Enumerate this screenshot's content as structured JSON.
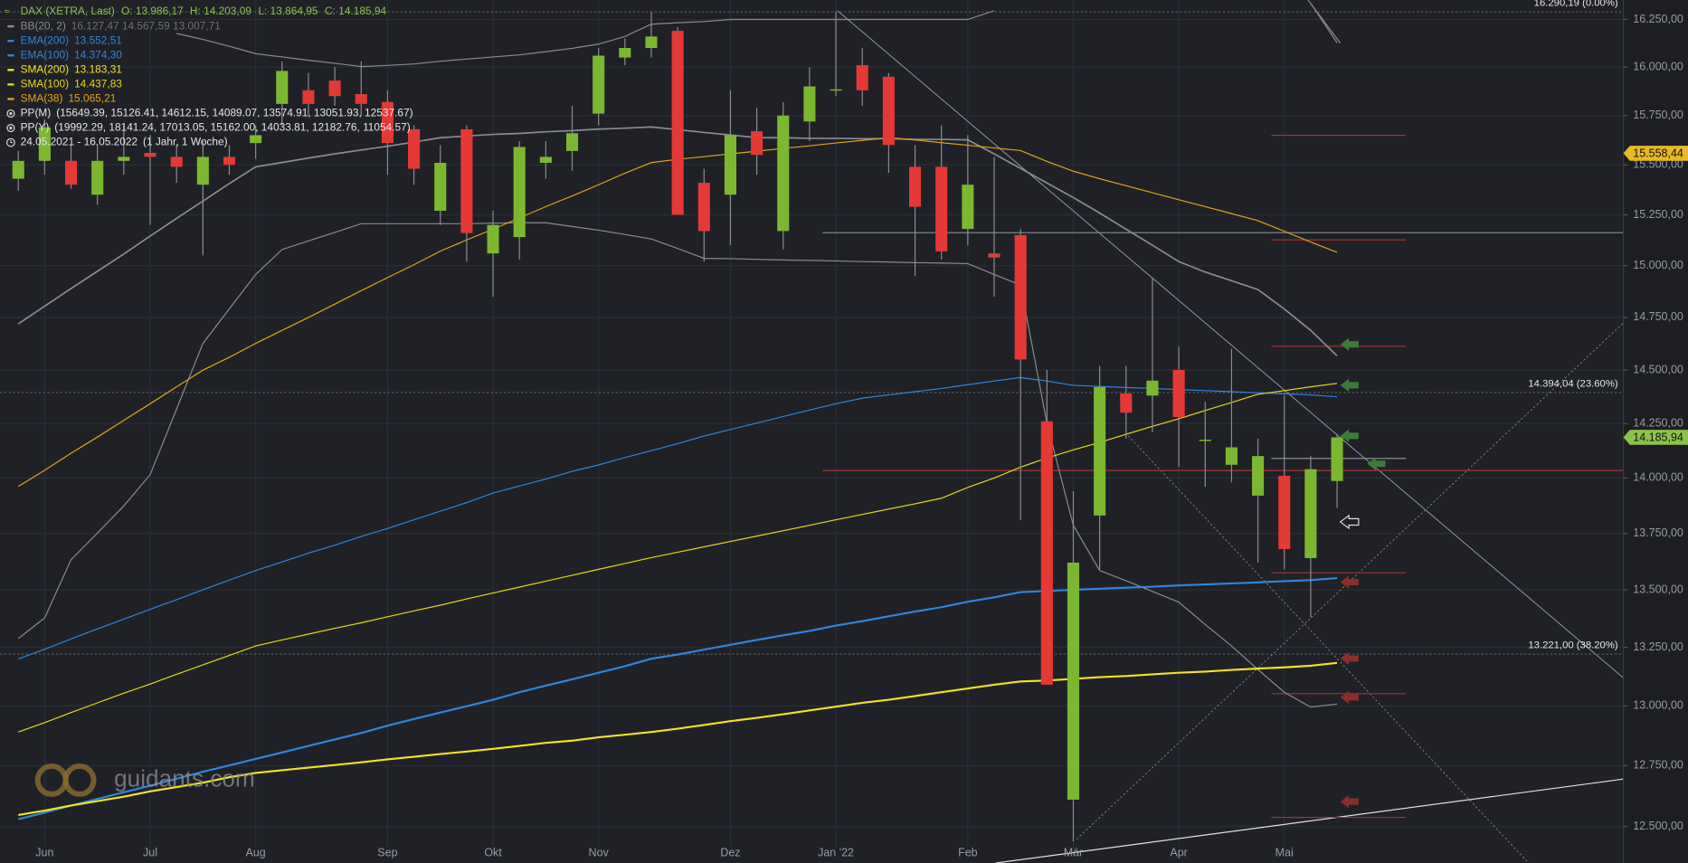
{
  "chart_data": {
    "type": "candlestick",
    "title": "DAX (XETRA, Last)",
    "header_values": [
      "O: 13.986,17",
      "H: 14.203,09",
      "L: 13.864,95",
      "C: 14.185,94"
    ],
    "date_range": "24.05.2021 - 16.05.2022",
    "period": "(1 Jahr, 1 Woche)",
    "watermark": "guidants.com",
    "log_scale": true,
    "grid": true,
    "up_color": "#7cb82f",
    "down_color": "#e53935",
    "categories": [
      null,
      "Jun",
      null,
      null,
      null,
      "Jul",
      null,
      null,
      null,
      "Aug",
      null,
      null,
      null,
      null,
      "Sep",
      null,
      null,
      null,
      "Okt",
      null,
      null,
      null,
      "Nov",
      null,
      null,
      null,
      null,
      "Dez",
      null,
      null,
      null,
      "Jan '22",
      null,
      null,
      null,
      null,
      "Feb",
      null,
      null,
      null,
      "Mär",
      null,
      null,
      null,
      "Apr",
      null,
      null,
      null,
      "Mai",
      null,
      null
    ],
    "open": [
      15430,
      15520,
      15520,
      15350,
      15520,
      15560,
      15540,
      15400,
      15540,
      15610,
      15810,
      15880,
      15930,
      15860,
      15820,
      15680,
      15270,
      15680,
      15060,
      15140,
      15510,
      15570,
      15760,
      16050,
      16100,
      16190,
      15410,
      15350,
      15670,
      15170,
      15720,
      15880,
      16010,
      15950,
      15490,
      15490,
      15180,
      15060,
      15150,
      14260,
      12610,
      13830,
      14390,
      14380,
      14500,
      14170,
      14060,
      13920,
      14010,
      13640,
      13986.17
    ],
    "high": [
      15570,
      15730,
      15600,
      15600,
      15700,
      15650,
      15600,
      15620,
      15600,
      15700,
      16030,
      15970,
      16000,
      16030,
      15880,
      15700,
      15600,
      15700,
      15270,
      15620,
      15620,
      15800,
      16100,
      16150,
      16290,
      16210,
      15480,
      15880,
      15790,
      15820,
      16000,
      16290,
      16100,
      15970,
      15600,
      15700,
      15650,
      15540,
      15180,
      14500,
      13940,
      14520,
      14520,
      14940,
      14610,
      14350,
      14600,
      14180,
      14380,
      14100,
      14203.09
    ],
    "low": [
      15370,
      15450,
      15380,
      15300,
      15450,
      15200,
      15410,
      15050,
      15450,
      15530,
      15700,
      15750,
      15800,
      15750,
      15450,
      15400,
      15200,
      15020,
      14850,
      15030,
      15430,
      15470,
      15700,
      16010,
      16050,
      15250,
      15020,
      15100,
      15450,
      15080,
      15620,
      15850,
      15800,
      15460,
      14950,
      15030,
      15100,
      14850,
      13810,
      13090,
      12440,
      13590,
      14180,
      14210,
      14050,
      13960,
      13980,
      13620,
      13590,
      13380,
      13864.95
    ],
    "close": [
      15520,
      15690,
      15400,
      15520,
      15540,
      15540,
      15490,
      15540,
      15500,
      15650,
      15980,
      15810,
      15850,
      15810,
      15610,
      15480,
      15510,
      15160,
      15200,
      15590,
      15540,
      15660,
      16060,
      16100,
      16160,
      15250,
      15170,
      15650,
      15550,
      15750,
      15900,
      15885,
      15880,
      15600,
      15290,
      15070,
      15400,
      15040,
      14550,
      13090,
      13620,
      14420,
      14300,
      14450,
      14280,
      14175,
      14140,
      14100,
      13680,
      14040,
      14185.94
    ],
    "bands": {
      "name": "BB(20, 2)",
      "color": "#8a8c91",
      "legend_label": "16.127,47  14.567,59  13.007,71",
      "upper": [
        null,
        null,
        null,
        null,
        null,
        null,
        16176,
        16145,
        16109,
        16070,
        16053,
        16036,
        16020,
        16003,
        16009,
        16017,
        16031,
        16042,
        16053,
        16064,
        16081,
        16098,
        16120,
        16160,
        16225,
        16233,
        16239,
        16250,
        16250,
        16250,
        16250,
        16250,
        16250,
        16250,
        16250,
        16250,
        16250,
        16296,
        null,
        null,
        null,
        null,
        null,
        null,
        null,
        null,
        null,
        null,
        null,
        16336,
        16127
      ],
      "middle": [
        14719,
        14804,
        14889,
        14973,
        15057,
        15145,
        15232,
        15318,
        15406,
        15490,
        15512,
        15534,
        15555,
        15575,
        15594,
        15615,
        15637,
        15646,
        15654,
        15659,
        15667,
        15673,
        15681,
        15686,
        15692,
        15678,
        15664,
        15651,
        15637,
        15637,
        15634,
        15634,
        15632,
        15632,
        15629,
        15629,
        15626,
        15555,
        15482,
        15409,
        15336,
        15259,
        15179,
        15100,
        15020,
        14969,
        14927,
        14884,
        14790,
        14688,
        14567
      ],
      "lower": [
        13288,
        13377,
        13633,
        13752,
        13873,
        14015,
        14317,
        14626,
        14791,
        14957,
        15079,
        15121,
        15163,
        15206,
        15206,
        15206,
        15206,
        15206,
        15209,
        15211,
        15211,
        15192,
        15174,
        15153,
        15131,
        15084,
        15036,
        15034,
        15031,
        15028,
        15026,
        15023,
        15020,
        15018,
        15015,
        15013,
        15010,
        14957,
        14906,
        14252,
        13786,
        13585,
        13540,
        13493,
        13446,
        13349,
        13256,
        13155,
        13058,
        12995,
        13008
      ]
    },
    "series": [
      {
        "name": "EMA(200)",
        "color": "#2f86de",
        "width": 1.8,
        "legend_label": "13.552,51",
        "values": [
          12530,
          12557,
          12586,
          12613,
          12640,
          12667,
          12696,
          12725,
          12751,
          12778,
          12805,
          12832,
          12859,
          12886,
          12917,
          12945,
          12972,
          12999,
          13026,
          13058,
          13086,
          13113,
          13141,
          13169,
          13201,
          13219,
          13240,
          13261,
          13282,
          13302,
          13321,
          13344,
          13363,
          13384,
          13405,
          13424,
          13448,
          13467,
          13490,
          13495,
          13500,
          13505,
          13509,
          13514,
          13519,
          13524,
          13528,
          13533,
          13538,
          13543,
          13552
        ]
      },
      {
        "name": "EMA(100)",
        "color": "#2f86de",
        "width": 1,
        "legend_label": "14.374,30",
        "values": [
          13200,
          13242,
          13286,
          13330,
          13372,
          13415,
          13457,
          13500,
          13543,
          13585,
          13623,
          13662,
          13697,
          13736,
          13772,
          13811,
          13850,
          13888,
          13932,
          13963,
          13995,
          14030,
          14059,
          14093,
          14125,
          14157,
          14192,
          14222,
          14252,
          14282,
          14312,
          14342,
          14368,
          14383,
          14398,
          14413,
          14431,
          14448,
          14464,
          14448,
          14428,
          14423,
          14418,
          14413,
          14408,
          14403,
          14398,
          14393,
          14388,
          14383,
          14374
        ]
      },
      {
        "name": "SMA(200)",
        "color": "#f2e422",
        "width": 1.8,
        "legend_label": "13.183,31",
        "values": [
          12547,
          12565,
          12586,
          12604,
          12622,
          12644,
          12662,
          12680,
          12702,
          12720,
          12731,
          12742,
          12753,
          12764,
          12776,
          12787,
          12798,
          12809,
          12820,
          12832,
          12845,
          12854,
          12868,
          12879,
          12890,
          12904,
          12920,
          12936,
          12950,
          12965,
          12981,
          12997,
          13013,
          13026,
          13042,
          13058,
          13074,
          13090,
          13104,
          13108,
          13115,
          13122,
          13127,
          13134,
          13141,
          13146,
          13153,
          13159,
          13164,
          13171,
          13183
        ]
      },
      {
        "name": "SMA(100)",
        "color": "#e6d51c",
        "width": 1,
        "legend_label": "14.437,83",
        "values": [
          12890,
          12930,
          12972,
          13013,
          13054,
          13093,
          13134,
          13175,
          13215,
          13256,
          13282,
          13307,
          13332,
          13356,
          13382,
          13408,
          13433,
          13460,
          13486,
          13512,
          13538,
          13564,
          13590,
          13616,
          13642,
          13666,
          13690,
          13714,
          13738,
          13762,
          13786,
          13811,
          13835,
          13859,
          13883,
          13908,
          13957,
          14000,
          14049,
          14091,
          14128,
          14163,
          14200,
          14237,
          14272,
          14310,
          14348,
          14386,
          14403,
          14421,
          14437
        ]
      },
      {
        "name": "SMA(38)",
        "color": "#e3a21a",
        "width": 1,
        "legend_label": "15.065,21",
        "values": [
          13961,
          14035,
          14113,
          14187,
          14265,
          14342,
          14421,
          14499,
          14560,
          14626,
          14688,
          14750,
          14814,
          14879,
          14942,
          15005,
          15071,
          15126,
          15179,
          15235,
          15291,
          15344,
          15400,
          15458,
          15511,
          15528,
          15541,
          15555,
          15569,
          15583,
          15596,
          15610,
          15624,
          15637,
          15626,
          15612,
          15599,
          15585,
          15572,
          15517,
          15468,
          15430,
          15395,
          15360,
          15325,
          15291,
          15256,
          15221,
          15169,
          15116,
          15065
        ]
      }
    ],
    "pivots": [
      {
        "name": "PP(M)",
        "label": "(15649.39, 15126.41, 14612.15, 14089.07, 13574.91, 13051.93, 12537.67)",
        "values": [
          15649.39,
          15126.41,
          14612.15,
          14089.07,
          13574.91,
          13051.93,
          12537.67
        ]
      },
      {
        "name": "PP(Y)",
        "label": "(19992.29, 18141.24, 17013.05, 15162.00, 14033.81, 12182.76, 11054.57)",
        "values": [
          19992.29,
          18141.24,
          17013.05,
          15162.0,
          14033.81,
          12182.76,
          11054.57
        ]
      }
    ],
    "pivot_color": "#a8352f",
    "pivot_center_color": "#8a8c91",
    "fib_levels": [
      {
        "value": 16290.19,
        "label": "16.290,19 (0.00%)"
      },
      {
        "value": 14394.04,
        "label": "14.394,04 (23.60%)"
      },
      {
        "value": 13221.0,
        "label": "13.221,00 (38.20%)"
      }
    ],
    "price_tags": [
      {
        "value": 15558.44,
        "label": "15.558,44",
        "color": "#e8b923"
      },
      {
        "value": 14185.94,
        "label": "14.185,94",
        "color": "#8bc34a"
      }
    ],
    "ylim": [
      12353,
      16353
    ],
    "yticks": [
      {
        "value": 16250,
        "label": "16.250,00"
      },
      {
        "value": 16000,
        "label": "16.000,00"
      },
      {
        "value": 15750,
        "label": "15.750,00"
      },
      {
        "value": 15500,
        "label": "15.500,00"
      },
      {
        "value": 15250,
        "label": "15.250,00"
      },
      {
        "value": 15000,
        "label": "15.000,00"
      },
      {
        "value": 14750,
        "label": "14.750,00"
      },
      {
        "value": 14500,
        "label": "14.500,00"
      },
      {
        "value": 14250,
        "label": "14.250,00"
      },
      {
        "value": 14000,
        "label": "14.000,00"
      },
      {
        "value": 13750,
        "label": "13.750,00"
      },
      {
        "value": 13500,
        "label": "13.500,00"
      },
      {
        "value": 13250,
        "label": "13.250,00"
      },
      {
        "value": 13000,
        "label": "13.000,00"
      },
      {
        "value": 12750,
        "label": "12.750,00"
      },
      {
        "value": 12500,
        "label": "12.500,00"
      }
    ]
  }
}
